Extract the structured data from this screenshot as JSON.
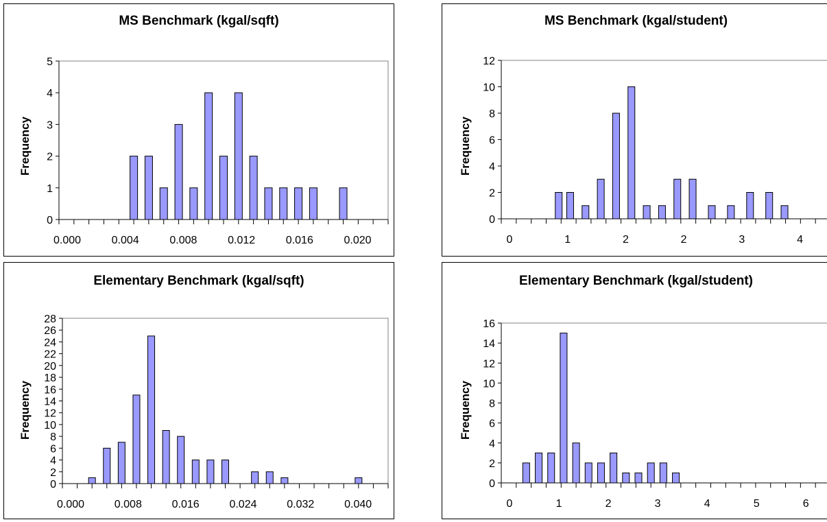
{
  "chart_data": [
    {
      "type": "bar",
      "title": "MS Benchmark (kgal/sqft)",
      "xlabel": "",
      "ylabel": "Frequency",
      "ylim": [
        0,
        5
      ],
      "yticks": [
        "0",
        "1",
        "2",
        "3",
        "4",
        "5"
      ],
      "xticks": [
        "0.000",
        "0.004",
        "0.008",
        "0.012",
        "0.016",
        "0.020"
      ],
      "xlim": [
        0.0,
        0.022
      ],
      "x": [
        0.005,
        0.006,
        0.007,
        0.008,
        0.009,
        0.01,
        0.011,
        0.012,
        0.013,
        0.014,
        0.015,
        0.016,
        0.017,
        0.019
      ],
      "values": [
        2,
        2,
        1,
        3,
        1,
        4,
        2,
        4,
        2,
        1,
        1,
        1,
        1,
        1
      ],
      "grid": false,
      "color": "#9999ff"
    },
    {
      "type": "bar",
      "title": "MS Benchmark (kgal/student)",
      "xlabel": "",
      "ylabel": "Frequency",
      "ylim": [
        0,
        12
      ],
      "yticks": [
        "0",
        "2",
        "4",
        "6",
        "8",
        "10",
        "12"
      ],
      "xticks": [
        "0",
        "1",
        "2",
        "2",
        "3",
        "4"
      ],
      "xlim": [
        0,
        4.3
      ],
      "x": [
        0.75,
        0.9,
        1.1,
        1.3,
        1.5,
        1.7,
        1.9,
        2.1,
        2.3,
        2.5,
        2.75,
        3.0,
        3.25,
        3.5,
        3.7
      ],
      "values": [
        2,
        2,
        1,
        3,
        8,
        10,
        1,
        1,
        3,
        3,
        1,
        1,
        2,
        2,
        1
      ],
      "grid": false,
      "color": "#9999ff"
    },
    {
      "type": "bar",
      "title": "Elementary Benchmark (kgal/sqft)",
      "xlabel": "",
      "ylabel": "Frequency",
      "ylim": [
        0,
        28
      ],
      "yticks": [
        "0",
        "2",
        "4",
        "6",
        "8",
        "10",
        "12",
        "14",
        "16",
        "18",
        "20",
        "22",
        "24",
        "26",
        "28"
      ],
      "xticks": [
        "0.000",
        "0.008",
        "0.016",
        "0.024",
        "0.032",
        "0.040"
      ],
      "xlim": [
        0.0,
        0.044
      ],
      "x": [
        0.004,
        0.006,
        0.008,
        0.01,
        0.012,
        0.014,
        0.016,
        0.018,
        0.02,
        0.022,
        0.026,
        0.028,
        0.03,
        0.04
      ],
      "values": [
        1,
        6,
        7,
        15,
        25,
        9,
        8,
        4,
        4,
        4,
        2,
        2,
        1,
        1
      ],
      "grid": false,
      "color": "#9999ff"
    },
    {
      "type": "bar",
      "title": "Elementary Benchmark (kgal/student)",
      "xlabel": "",
      "ylabel": "Frequency",
      "ylim": [
        0,
        16
      ],
      "yticks": [
        "0",
        "2",
        "4",
        "6",
        "8",
        "10",
        "12",
        "14",
        "16"
      ],
      "xticks": [
        "0",
        "1",
        "2",
        "3",
        "4",
        "5",
        "6"
      ],
      "xlim": [
        0,
        6.6
      ],
      "x": [
        0.5,
        0.75,
        1.0,
        1.25,
        1.5,
        1.75,
        2.0,
        2.25,
        2.5,
        2.75,
        3.0,
        3.25,
        3.5
      ],
      "values": [
        2,
        3,
        3,
        15,
        4,
        2,
        2,
        3,
        1,
        1,
        2,
        2,
        1
      ],
      "grid": false,
      "color": "#9999ff"
    }
  ]
}
